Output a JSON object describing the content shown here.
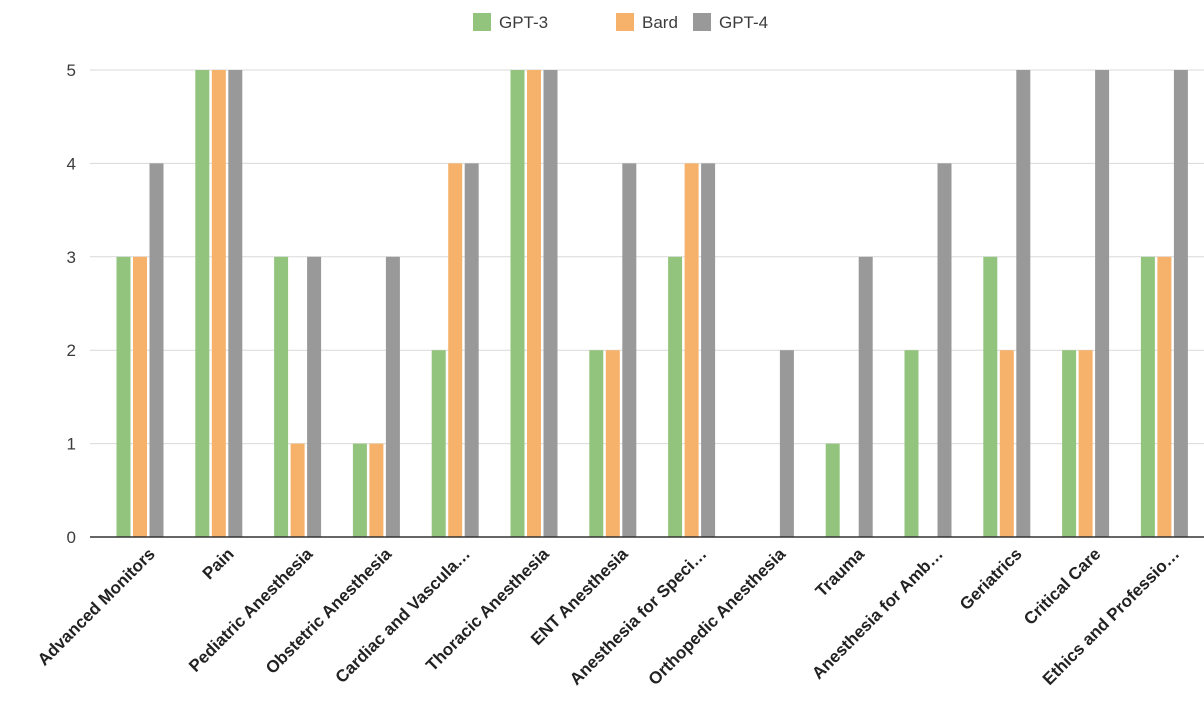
{
  "chart_data": {
    "type": "bar",
    "title": "",
    "xlabel": "",
    "ylabel": "",
    "ylim": [
      0,
      5
    ],
    "yticks": [
      0,
      1,
      2,
      3,
      4,
      5
    ],
    "grid": true,
    "legend_position": "top-center",
    "categories": [
      "Advanced Monitors",
      "Pain",
      "Pediatric Anesthesia",
      "Obstetric Anesthesia",
      "Cardiac and Vascula…",
      "Thoracic Anesthesia",
      "ENT Anesthesia",
      "Anesthesia for Speci…",
      "Orthopedic Anesthesia",
      "Trauma",
      "Anesthesia for Amb…",
      "Geriatrics",
      "Critical Care",
      "Ethics and Professio…"
    ],
    "series": [
      {
        "name": "GPT-3",
        "color": "#93c47d",
        "values": [
          3,
          5,
          3,
          1,
          2,
          5,
          2,
          3,
          0,
          1,
          2,
          3,
          2,
          3
        ]
      },
      {
        "name": "Bard",
        "color": "#f6b26b",
        "values": [
          3,
          5,
          1,
          1,
          4,
          5,
          2,
          4,
          0,
          0,
          0,
          2,
          2,
          3
        ]
      },
      {
        "name": "GPT-4",
        "color": "#999999",
        "values": [
          4,
          5,
          3,
          3,
          4,
          5,
          4,
          4,
          2,
          3,
          4,
          5,
          5,
          5
        ]
      }
    ]
  }
}
